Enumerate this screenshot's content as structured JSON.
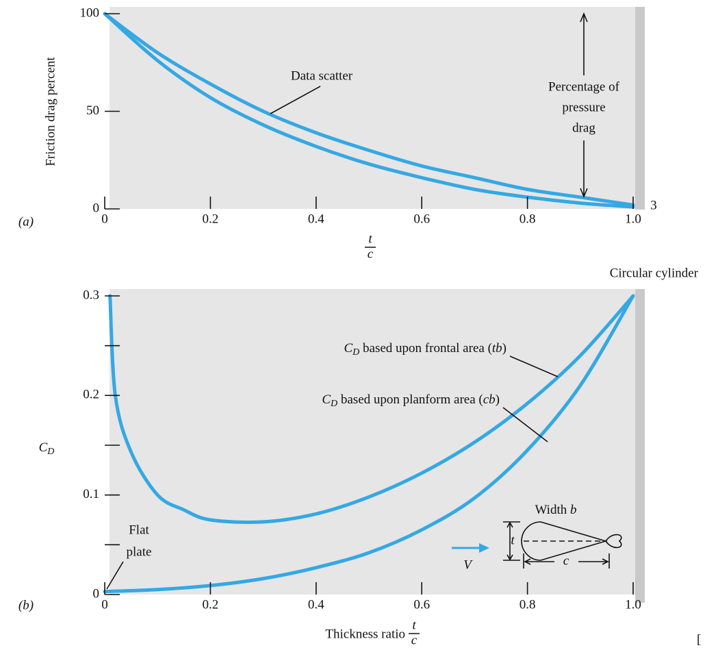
{
  "chart_data": [
    {
      "type": "line",
      "panel_label": "(a)",
      "ylabel": "Friction drag percent",
      "xlabel": {
        "numerator": "t",
        "denominator": "c"
      },
      "xlim": [
        0,
        1
      ],
      "ylim": [
        0,
        100
      ],
      "xticks": [
        0,
        0.2,
        0.4,
        0.6,
        0.8,
        {
          "value": 1,
          "label": "1.0"
        }
      ],
      "yticks": [
        0,
        50,
        100
      ],
      "series": [
        {
          "color": "#35a8e3",
          "x": [
            0,
            0.1,
            0.2,
            0.3,
            0.4,
            0.5,
            0.6,
            0.7,
            0.8,
            0.9,
            1.0
          ],
          "values": [
            100,
            80,
            64,
            50,
            39,
            30,
            22,
            16,
            10,
            6,
            2
          ]
        },
        {
          "color": "#35a8e3",
          "x": [
            0,
            0.1,
            0.2,
            0.3,
            0.4,
            0.5,
            0.6,
            0.7,
            0.8,
            0.9,
            1.0
          ],
          "values": [
            100,
            76,
            57,
            43,
            32,
            23,
            16,
            10,
            6,
            3,
            1
          ]
        }
      ],
      "annotations": {
        "data_scatter": "Data scatter",
        "pressure_drag": [
          "Percentage of",
          "pressure",
          "drag"
        ],
        "end_mark": "3"
      }
    },
    {
      "type": "line",
      "panel_label": "(b)",
      "ylabel": {
        "symbol": "C",
        "subscript": "D"
      },
      "xlabel": {
        "text": "Thickness ratio",
        "numerator": "t",
        "denominator": "c"
      },
      "xlim": [
        0,
        1
      ],
      "ylim": [
        0,
        0.3
      ],
      "xticks": [
        0,
        0.2,
        0.4,
        0.6,
        0.8,
        {
          "value": 1,
          "label": "1.0"
        }
      ],
      "yticks": [
        0,
        0.1,
        0.2,
        0.3
      ],
      "minor_yticks": [
        0.05,
        0.15,
        0.25
      ],
      "series": [
        {
          "color": "#35a8e3",
          "label": {
            "symbol": "C",
            "subscript": "D",
            "before": " based upon frontal area (",
            "italic": "tb",
            "after": ")"
          },
          "x": [
            0.01,
            0.02,
            0.05,
            0.1,
            0.15,
            0.2,
            0.3,
            0.4,
            0.5,
            0.6,
            0.7,
            0.8,
            0.9,
            1.0
          ],
          "values": [
            0.3,
            0.2,
            0.143,
            0.1,
            0.085,
            0.075,
            0.073,
            0.081,
            0.098,
            0.122,
            0.153,
            0.192,
            0.24,
            0.3
          ]
        },
        {
          "color": "#35a8e3",
          "label": {
            "symbol": "C",
            "subscript": "D",
            "before": " based upon planform area (",
            "italic": "cb",
            "after": ")"
          },
          "x": [
            0,
            0.1,
            0.2,
            0.3,
            0.4,
            0.5,
            0.6,
            0.7,
            0.8,
            0.9,
            1.0
          ],
          "values": [
            0.003,
            0.005,
            0.009,
            0.016,
            0.027,
            0.042,
            0.065,
            0.097,
            0.145,
            0.21,
            0.3
          ]
        }
      ],
      "annotations": {
        "circular_cylinder": "Circular cylinder",
        "flat_plate": [
          "Flat",
          "plate"
        ],
        "diagram": {
          "width": "Width ",
          "width_symbol": "b",
          "velocity": "V",
          "thickness": "t",
          "chord": "c"
        },
        "crop": "["
      }
    }
  ]
}
